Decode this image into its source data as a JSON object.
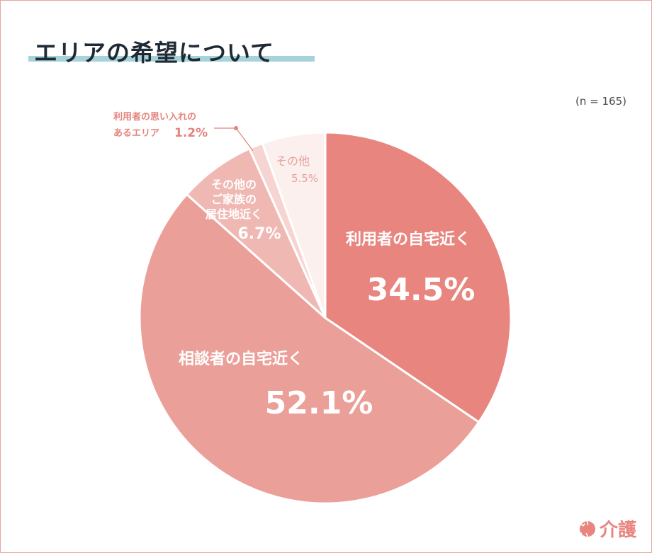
{
  "header": {
    "title": "エリアの希望について"
  },
  "sample_size": "(n = 165)",
  "brand": {
    "mark": "いい",
    "word": "介護"
  },
  "chart_data": {
    "type": "pie",
    "title": "エリアの希望について",
    "start_angle_deg": 0,
    "direction": "clockwise",
    "slices": [
      {
        "label": "利用者の自宅近く",
        "value": 34.5,
        "value_label": "34.5%",
        "color": "#e8857f"
      },
      {
        "label": "相談者の自宅近く",
        "value": 52.1,
        "value_label": "52.1%",
        "color": "#eb9f99"
      },
      {
        "label": "その他のご家族の居住地近く",
        "value": 6.7,
        "value_label": "6.7%",
        "color": "#f0b8b3"
      },
      {
        "label": "利用者の思い入れのあるエリア",
        "value": 1.2,
        "value_label": "1.2%",
        "color": "#f6d4d1"
      },
      {
        "label": "その他",
        "value": 5.5,
        "value_label": "5.5%",
        "color": "#fbf0ee"
      }
    ],
    "labels": {
      "s0": {
        "lines": [
          "利用者の自宅近く"
        ],
        "value": "34.5%"
      },
      "s1": {
        "lines": [
          "相談者の自宅近く"
        ],
        "value": "52.1%"
      },
      "s2": {
        "lines": [
          "その他の",
          "ご家族の",
          "居住地近く"
        ],
        "value": "6.7%"
      },
      "s3": {
        "lines": [
          "利用者の思い入れの",
          "あるエリア"
        ],
        "value": "1.2%"
      },
      "s4": {
        "lines": [
          "その他"
        ],
        "value": "5.5%"
      }
    }
  }
}
